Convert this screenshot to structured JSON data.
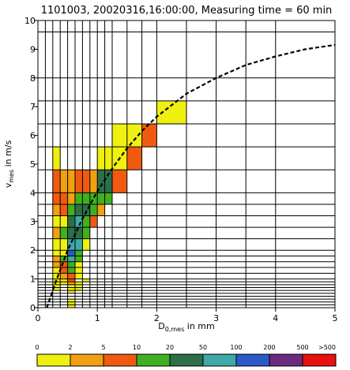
{
  "chart_data": {
    "type": "heatmap",
    "title": "1101003, 20020316,16:00:00, Measuring time = 60 min",
    "xlabel": {
      "main": "D",
      "sub": "0,mes",
      "rest": " in mm"
    },
    "ylabel": {
      "main": "v",
      "sub": "mes",
      "rest": " in m/s"
    },
    "xlim": [
      0,
      5
    ],
    "ylim": [
      0,
      10
    ],
    "x_ticks": [
      0,
      1,
      2,
      3,
      4,
      5
    ],
    "y_ticks": [
      0,
      1,
      2,
      3,
      4,
      5,
      6,
      7,
      8,
      9,
      10
    ],
    "x_bin_edges": [
      0.0,
      0.125,
      0.25,
      0.375,
      0.5,
      0.625,
      0.75,
      0.875,
      1.0,
      1.125,
      1.25,
      1.5,
      1.75,
      2.0,
      2.5,
      3.0,
      3.5,
      4.0,
      5.0
    ],
    "y_bin_edges": [
      0.0,
      0.1,
      0.2,
      0.3,
      0.4,
      0.5,
      0.6,
      0.7,
      0.8,
      0.9,
      1.0,
      1.2,
      1.4,
      1.6,
      1.8,
      2.0,
      2.4,
      2.8,
      3.2,
      3.6,
      4.0,
      4.8,
      5.6,
      6.4,
      7.2,
      8.0,
      9.6,
      10.0
    ],
    "grid": true,
    "color_scale": {
      "labels": [
        "0",
        "2",
        "5",
        "10",
        "20",
        "50",
        "100",
        "200",
        "500",
        ">500"
      ],
      "colors": [
        "#f0f010",
        "#f0a010",
        "#f05a10",
        "#40b020",
        "#2e6e48",
        "#40a8a8",
        "#2a5ac8",
        "#6a2a80",
        "#e81010"
      ]
    },
    "cells": [
      {
        "xi": 2,
        "yi": 6,
        "c": 0
      },
      {
        "xi": 2,
        "yi": 7,
        "c": 0
      },
      {
        "xi": 2,
        "yi": 8,
        "c": 0
      },
      {
        "xi": 2,
        "yi": 9,
        "c": 0
      },
      {
        "xi": 2,
        "yi": 10,
        "c": 0
      },
      {
        "xi": 2,
        "yi": 11,
        "c": 0
      },
      {
        "xi": 2,
        "yi": 12,
        "c": 1
      },
      {
        "xi": 2,
        "yi": 13,
        "c": 1
      },
      {
        "xi": 2,
        "yi": 14,
        "c": 0
      },
      {
        "xi": 2,
        "yi": 15,
        "c": 0
      },
      {
        "xi": 2,
        "yi": 16,
        "c": 1
      },
      {
        "xi": 2,
        "yi": 17,
        "c": 0
      },
      {
        "xi": 2,
        "yi": 18,
        "c": 1
      },
      {
        "xi": 2,
        "yi": 19,
        "c": 2
      },
      {
        "xi": 2,
        "yi": 20,
        "c": 2
      },
      {
        "xi": 2,
        "yi": 21,
        "c": 0
      },
      {
        "xi": 3,
        "yi": 8,
        "c": 0
      },
      {
        "xi": 3,
        "yi": 9,
        "c": 0
      },
      {
        "xi": 3,
        "yi": 10,
        "c": 1
      },
      {
        "xi": 3,
        "yi": 11,
        "c": 2
      },
      {
        "xi": 3,
        "yi": 12,
        "c": 2
      },
      {
        "xi": 3,
        "yi": 13,
        "c": 3
      },
      {
        "xi": 3,
        "yi": 14,
        "c": 0
      },
      {
        "xi": 3,
        "yi": 15,
        "c": 0
      },
      {
        "xi": 3,
        "yi": 16,
        "c": 3
      },
      {
        "xi": 3,
        "yi": 17,
        "c": 0
      },
      {
        "xi": 3,
        "yi": 18,
        "c": 2
      },
      {
        "xi": 3,
        "yi": 19,
        "c": 2
      },
      {
        "xi": 3,
        "yi": 20,
        "c": 1
      },
      {
        "xi": 4,
        "yi": 0,
        "c": 0
      },
      {
        "xi": 4,
        "yi": 1,
        "c": 0
      },
      {
        "xi": 4,
        "yi": 2,
        "c": 0
      },
      {
        "xi": 4,
        "yi": 5,
        "c": 0
      },
      {
        "xi": 4,
        "yi": 6,
        "c": 0
      },
      {
        "xi": 4,
        "yi": 7,
        "c": 0
      },
      {
        "xi": 4,
        "yi": 8,
        "c": 1
      },
      {
        "xi": 4,
        "yi": 9,
        "c": 2
      },
      {
        "xi": 4,
        "yi": 10,
        "c": 2
      },
      {
        "xi": 4,
        "yi": 11,
        "c": 3
      },
      {
        "xi": 4,
        "yi": 12,
        "c": 3
      },
      {
        "xi": 4,
        "yi": 13,
        "c": 5
      },
      {
        "xi": 4,
        "yi": 14,
        "c": 6
      },
      {
        "xi": 4,
        "yi": 15,
        "c": 5
      },
      {
        "xi": 4,
        "yi": 16,
        "c": 4
      },
      {
        "xi": 4,
        "yi": 17,
        "c": 4
      },
      {
        "xi": 4,
        "yi": 18,
        "c": 3
      },
      {
        "xi": 4,
        "yi": 19,
        "c": 1
      },
      {
        "xi": 4,
        "yi": 20,
        "c": 1
      },
      {
        "xi": 5,
        "yi": 6,
        "c": 0
      },
      {
        "xi": 5,
        "yi": 7,
        "c": 0
      },
      {
        "xi": 5,
        "yi": 8,
        "c": 0
      },
      {
        "xi": 5,
        "yi": 10,
        "c": 0
      },
      {
        "xi": 5,
        "yi": 11,
        "c": 0
      },
      {
        "xi": 5,
        "yi": 12,
        "c": 0
      },
      {
        "xi": 5,
        "yi": 13,
        "c": 3
      },
      {
        "xi": 5,
        "yi": 14,
        "c": 3
      },
      {
        "xi": 5,
        "yi": 15,
        "c": 5
      },
      {
        "xi": 5,
        "yi": 16,
        "c": 4
      },
      {
        "xi": 5,
        "yi": 17,
        "c": 5
      },
      {
        "xi": 5,
        "yi": 18,
        "c": 4
      },
      {
        "xi": 5,
        "yi": 19,
        "c": 3
      },
      {
        "xi": 5,
        "yi": 20,
        "c": 2
      },
      {
        "xi": 6,
        "yi": 9,
        "c": 0
      },
      {
        "xi": 6,
        "yi": 15,
        "c": 0
      },
      {
        "xi": 6,
        "yi": 16,
        "c": 3
      },
      {
        "xi": 6,
        "yi": 17,
        "c": 3
      },
      {
        "xi": 6,
        "yi": 18,
        "c": 4
      },
      {
        "xi": 6,
        "yi": 19,
        "c": 3
      },
      {
        "xi": 6,
        "yi": 20,
        "c": 2
      },
      {
        "xi": 7,
        "yi": 17,
        "c": 2
      },
      {
        "xi": 7,
        "yi": 18,
        "c": 3
      },
      {
        "xi": 7,
        "yi": 19,
        "c": 3
      },
      {
        "xi": 7,
        "yi": 20,
        "c": 1
      },
      {
        "xi": 8,
        "yi": 18,
        "c": 1
      },
      {
        "xi": 8,
        "yi": 19,
        "c": 3
      },
      {
        "xi": 8,
        "yi": 20,
        "c": 4
      },
      {
        "xi": 8,
        "yi": 21,
        "c": 0
      },
      {
        "xi": 9,
        "yi": 19,
        "c": 3
      },
      {
        "xi": 9,
        "yi": 20,
        "c": 4
      },
      {
        "xi": 9,
        "yi": 21,
        "c": 0
      },
      {
        "xi": 10,
        "yi": 20,
        "c": 2
      },
      {
        "xi": 10,
        "yi": 21,
        "c": 0
      },
      {
        "xi": 10,
        "yi": 22,
        "c": 0
      },
      {
        "xi": 11,
        "yi": 21,
        "c": 2
      },
      {
        "xi": 11,
        "yi": 22,
        "c": 0
      },
      {
        "xi": 12,
        "yi": 22,
        "c": 2
      },
      {
        "xi": 13,
        "yi": 23,
        "c": 0
      }
    ],
    "fit_curve": {
      "style": "dashed",
      "points": [
        [
          0.15,
          0.0
        ],
        [
          0.3,
          0.9
        ],
        [
          0.5,
          2.0
        ],
        [
          0.75,
          3.1
        ],
        [
          1.0,
          4.05
        ],
        [
          1.25,
          4.85
        ],
        [
          1.5,
          5.55
        ],
        [
          1.75,
          6.15
        ],
        [
          2.0,
          6.65
        ],
        [
          2.5,
          7.45
        ],
        [
          3.0,
          8.0
        ],
        [
          3.5,
          8.45
        ],
        [
          4.0,
          8.75
        ],
        [
          4.5,
          9.0
        ],
        [
          5.0,
          9.15
        ]
      ]
    }
  }
}
